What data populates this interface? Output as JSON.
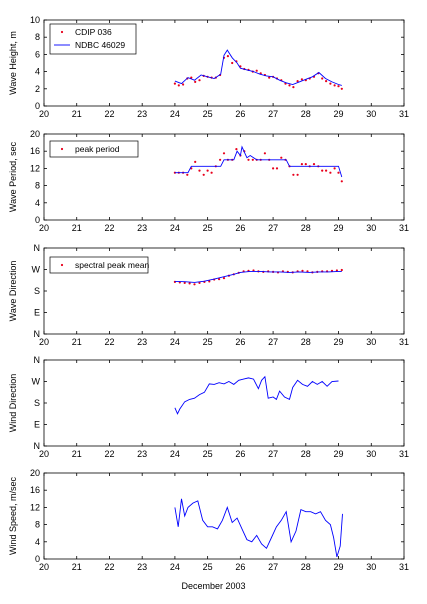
{
  "chart_data": [
    {
      "type": "line",
      "ylabel": "Wave Height, m",
      "xlim": [
        20,
        31
      ],
      "ylim": [
        0,
        10
      ],
      "xticks": [
        "20",
        "21",
        "22",
        "23",
        "24",
        "25",
        "26",
        "27",
        "28",
        "29",
        "30",
        "31"
      ],
      "yticks": [
        "0",
        "2",
        "4",
        "6",
        "8",
        "10"
      ],
      "legend": "top-left",
      "series": [
        {
          "name": "CDIP 036",
          "style": "dots",
          "color": "#e8001c",
          "x": [
            24.0,
            24.12,
            24.25,
            24.38,
            24.5,
            24.62,
            24.75,
            24.88,
            25.0,
            25.12,
            25.25,
            25.38,
            25.5,
            25.62,
            25.75,
            25.88,
            26.0,
            26.12,
            26.25,
            26.38,
            26.5,
            26.62,
            26.75,
            26.88,
            27.0,
            27.12,
            27.25,
            27.38,
            27.5,
            27.62,
            27.75,
            27.88,
            28.0,
            28.12,
            28.25,
            28.38,
            28.5,
            28.62,
            28.75,
            28.88,
            29.0,
            29.1
          ],
          "y": [
            2.6,
            2.4,
            2.5,
            3.2,
            3.3,
            2.8,
            3.0,
            3.5,
            3.4,
            3.3,
            3.3,
            3.6,
            5.6,
            5.8,
            5.0,
            5.2,
            4.6,
            4.3,
            4.2,
            4.0,
            4.1,
            3.8,
            3.6,
            3.3,
            3.4,
            3.2,
            3.0,
            2.6,
            2.4,
            2.2,
            2.9,
            3.1,
            3.0,
            3.2,
            3.4,
            3.8,
            3.2,
            2.9,
            2.6,
            2.4,
            2.3,
            2.0
          ]
        },
        {
          "name": "NDBC 46029",
          "style": "line",
          "color": "#0000ff",
          "x": [
            24.0,
            24.2,
            24.4,
            24.6,
            24.8,
            25.0,
            25.2,
            25.4,
            25.5,
            25.6,
            25.75,
            25.9,
            26.0,
            26.2,
            26.4,
            26.6,
            26.8,
            27.0,
            27.2,
            27.4,
            27.6,
            27.8,
            28.0,
            28.2,
            28.4,
            28.6,
            28.8,
            29.0,
            29.1
          ],
          "y": [
            2.9,
            2.6,
            3.3,
            3.0,
            3.6,
            3.4,
            3.2,
            3.7,
            5.9,
            6.5,
            5.6,
            5.0,
            4.4,
            4.2,
            4.0,
            3.7,
            3.5,
            3.4,
            3.0,
            2.7,
            2.5,
            2.8,
            3.1,
            3.4,
            3.9,
            3.2,
            2.8,
            2.5,
            2.4
          ]
        }
      ]
    },
    {
      "type": "line",
      "ylabel": "Wave Period, sec",
      "xlim": [
        20,
        31
      ],
      "ylim": [
        0,
        20
      ],
      "xticks": [
        "20",
        "21",
        "22",
        "23",
        "24",
        "25",
        "26",
        "27",
        "28",
        "29",
        "30",
        "31"
      ],
      "yticks": [
        "0",
        "4",
        "8",
        "12",
        "16",
        "20"
      ],
      "legend": "top-left",
      "series": [
        {
          "name": "peak period",
          "style": "dots",
          "color": "#e8001c",
          "x": [
            24.0,
            24.12,
            24.25,
            24.38,
            24.5,
            24.62,
            24.75,
            24.88,
            25.0,
            25.12,
            25.25,
            25.38,
            25.5,
            25.62,
            25.75,
            25.88,
            26.0,
            26.12,
            26.25,
            26.38,
            26.5,
            26.62,
            26.75,
            26.88,
            27.0,
            27.12,
            27.25,
            27.38,
            27.5,
            27.62,
            27.75,
            27.88,
            28.0,
            28.12,
            28.25,
            28.38,
            28.5,
            28.62,
            28.75,
            28.88,
            29.0,
            29.1
          ],
          "y": [
            11,
            11,
            11,
            10.5,
            12,
            13.5,
            11.5,
            10.5,
            11.5,
            11,
            12.5,
            14,
            15.5,
            14,
            14,
            16.5,
            15,
            16,
            14,
            14,
            14,
            14,
            15.5,
            14,
            12,
            12,
            14.5,
            14,
            12.5,
            10.5,
            10.5,
            13,
            13,
            12.5,
            13,
            12.5,
            11.5,
            11.5,
            11,
            12,
            11,
            9
          ]
        },
        {
          "name": "",
          "style": "line",
          "color": "#0000ff",
          "x": [
            24.0,
            24.4,
            24.5,
            24.8,
            25.0,
            25.2,
            25.4,
            25.5,
            25.8,
            25.9,
            26.0,
            26.05,
            26.2,
            26.3,
            26.5,
            27.0,
            27.4,
            27.5,
            27.7,
            28.0,
            28.2,
            28.5,
            28.8,
            29.0,
            29.1
          ],
          "y": [
            11,
            11,
            12.5,
            12.5,
            12.5,
            12.5,
            12.5,
            14,
            14,
            16,
            15,
            17,
            14.5,
            15,
            14,
            14,
            14,
            12.5,
            12.5,
            12.5,
            12.5,
            12.5,
            12.5,
            12.5,
            10
          ]
        }
      ]
    },
    {
      "type": "line",
      "ylabel": "Wave Direction",
      "xlim": [
        20,
        31
      ],
      "ylim": [
        0,
        360
      ],
      "xticks": [
        "20",
        "21",
        "22",
        "23",
        "24",
        "25",
        "26",
        "27",
        "28",
        "29",
        "30",
        "31"
      ],
      "yticks": [
        "N",
        "E",
        "S",
        "W",
        "N"
      ],
      "legend": "top-left",
      "series": [
        {
          "name": "spectral peak mean",
          "style": "dots",
          "color": "#e8001c",
          "x": [
            24.0,
            24.15,
            24.3,
            24.45,
            24.6,
            24.75,
            24.9,
            25.05,
            25.2,
            25.35,
            25.5,
            25.65,
            25.8,
            25.95,
            26.1,
            26.25,
            26.4,
            26.55,
            26.7,
            26.85,
            27.0,
            27.15,
            27.3,
            27.45,
            27.6,
            27.75,
            27.9,
            28.05,
            28.2,
            28.35,
            28.5,
            28.65,
            28.8,
            28.95,
            29.1
          ],
          "y": [
            218,
            216,
            214,
            212,
            208,
            214,
            218,
            220,
            228,
            230,
            234,
            244,
            250,
            256,
            262,
            264,
            266,
            262,
            260,
            262,
            260,
            258,
            262,
            260,
            258,
            262,
            264,
            262,
            258,
            260,
            262,
            262,
            264,
            266,
            268
          ]
        },
        {
          "name": "",
          "style": "line",
          "color": "#0000ff",
          "x": [
            24.0,
            24.3,
            24.6,
            24.9,
            25.2,
            25.5,
            25.8,
            26.0,
            26.3,
            26.6,
            26.9,
            27.2,
            27.5,
            27.8,
            28.1,
            28.4,
            28.7,
            29.0,
            29.1
          ],
          "y": [
            220,
            219,
            216,
            221,
            230,
            240,
            250,
            258,
            262,
            262,
            260,
            260,
            258,
            260,
            258,
            260,
            260,
            262,
            262
          ]
        }
      ]
    },
    {
      "type": "line",
      "ylabel": "Wind Direction",
      "xlim": [
        20,
        31
      ],
      "ylim": [
        0,
        360
      ],
      "xticks": [
        "20",
        "21",
        "22",
        "23",
        "24",
        "25",
        "26",
        "27",
        "28",
        "29",
        "30",
        "31"
      ],
      "yticks": [
        "N",
        "E",
        "S",
        "W",
        "N"
      ],
      "series": [
        {
          "name": "",
          "style": "line",
          "color": "#0000ff",
          "x": [
            24.0,
            24.08,
            24.15,
            24.3,
            24.45,
            24.6,
            24.75,
            24.9,
            25.05,
            25.2,
            25.35,
            25.5,
            25.65,
            25.8,
            25.95,
            26.1,
            26.25,
            26.4,
            26.55,
            26.65,
            26.75,
            26.85,
            27.0,
            27.1,
            27.2,
            27.35,
            27.5,
            27.6,
            27.75,
            27.9,
            28.05,
            28.2,
            28.35,
            28.5,
            28.65,
            28.8,
            29.0
          ],
          "y": [
            160,
            135,
            155,
            185,
            195,
            200,
            215,
            225,
            260,
            258,
            265,
            260,
            270,
            258,
            275,
            280,
            285,
            280,
            240,
            275,
            290,
            200,
            205,
            195,
            230,
            205,
            195,
            245,
            275,
            258,
            250,
            270,
            258,
            270,
            250,
            270,
            272
          ]
        }
      ]
    },
    {
      "type": "line",
      "ylabel": "Wind Speed, m/sec",
      "xlabel": "December 2003",
      "xlim": [
        20,
        31
      ],
      "ylim": [
        0,
        20
      ],
      "xticks": [
        "20",
        "21",
        "22",
        "23",
        "24",
        "25",
        "26",
        "27",
        "28",
        "29",
        "30",
        "31"
      ],
      "yticks": [
        "0",
        "4",
        "8",
        "12",
        "16",
        "20"
      ],
      "series": [
        {
          "name": "",
          "style": "line",
          "color": "#0000ff",
          "x": [
            24.0,
            24.1,
            24.2,
            24.3,
            24.4,
            24.55,
            24.7,
            24.85,
            25.0,
            25.15,
            25.3,
            25.45,
            25.6,
            25.75,
            25.9,
            26.05,
            26.2,
            26.35,
            26.5,
            26.65,
            26.8,
            26.95,
            27.1,
            27.25,
            27.4,
            27.55,
            27.7,
            27.85,
            28.0,
            28.15,
            28.3,
            28.45,
            28.6,
            28.75,
            28.85,
            28.95,
            29.05,
            29.12
          ],
          "y": [
            12,
            7.5,
            14,
            10,
            12,
            13,
            13.5,
            9,
            7.5,
            7.5,
            7,
            9,
            12,
            8.5,
            9.5,
            7,
            4.5,
            4,
            5.5,
            3.5,
            2.5,
            5,
            7.5,
            9,
            11,
            4,
            6.5,
            11.5,
            11,
            11,
            10.5,
            11,
            9,
            8,
            5,
            0.5,
            3,
            10.5
          ]
        }
      ]
    }
  ]
}
